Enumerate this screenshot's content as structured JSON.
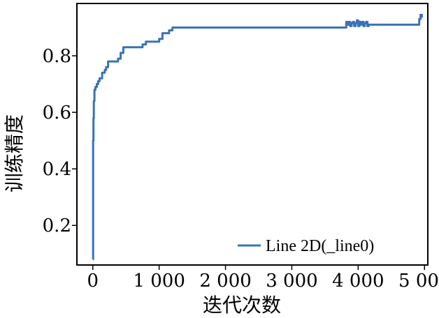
{
  "chart_data": {
    "type": "line",
    "title": "",
    "xlabel": "迭代次数",
    "ylabel": "训练精度",
    "xlim": [
      -240,
      5050
    ],
    "ylim": [
      0.06,
      0.985
    ],
    "x_ticks": [
      0,
      1000,
      2000,
      3000,
      4000,
      5000
    ],
    "x_tick_labels": [
      "0",
      "1 000",
      "2 000",
      "3 000",
      "4 000",
      "5 000"
    ],
    "y_ticks": [
      0.2,
      0.4,
      0.6,
      0.8
    ],
    "y_tick_labels": [
      "0.2",
      "0.4",
      "0.6",
      "0.8"
    ],
    "grid": false,
    "legend_position": "bottom-right",
    "series_color": "#3a73b5",
    "series": [
      {
        "name": "Line 2D(_line0)",
        "x": [
          0,
          5,
          10,
          15,
          25,
          40,
          60,
          80,
          100,
          140,
          180,
          200,
          230,
          300,
          380,
          420,
          460,
          500,
          600,
          700,
          750,
          800,
          900,
          1000,
          1050,
          1100,
          1150,
          1200,
          1500,
          2000,
          2500,
          3000,
          3500,
          3800,
          3820,
          3840,
          3860,
          3880,
          3900,
          3920,
          3940,
          3960,
          3980,
          4000,
          4020,
          4040,
          4060,
          4080,
          4100,
          4120,
          4140,
          4160,
          4500,
          4900,
          4920,
          4940,
          4960
        ],
        "y": [
          0.08,
          0.5,
          0.58,
          0.64,
          0.68,
          0.69,
          0.7,
          0.71,
          0.72,
          0.74,
          0.75,
          0.76,
          0.78,
          0.78,
          0.79,
          0.81,
          0.83,
          0.83,
          0.83,
          0.83,
          0.84,
          0.85,
          0.85,
          0.86,
          0.88,
          0.88,
          0.89,
          0.9,
          0.9,
          0.9,
          0.9,
          0.9,
          0.9,
          0.9,
          0.92,
          0.91,
          0.92,
          0.905,
          0.915,
          0.92,
          0.905,
          0.915,
          0.925,
          0.905,
          0.92,
          0.91,
          0.92,
          0.905,
          0.915,
          0.92,
          0.905,
          0.91,
          0.91,
          0.91,
          0.93,
          0.945,
          0.935
        ]
      }
    ]
  }
}
